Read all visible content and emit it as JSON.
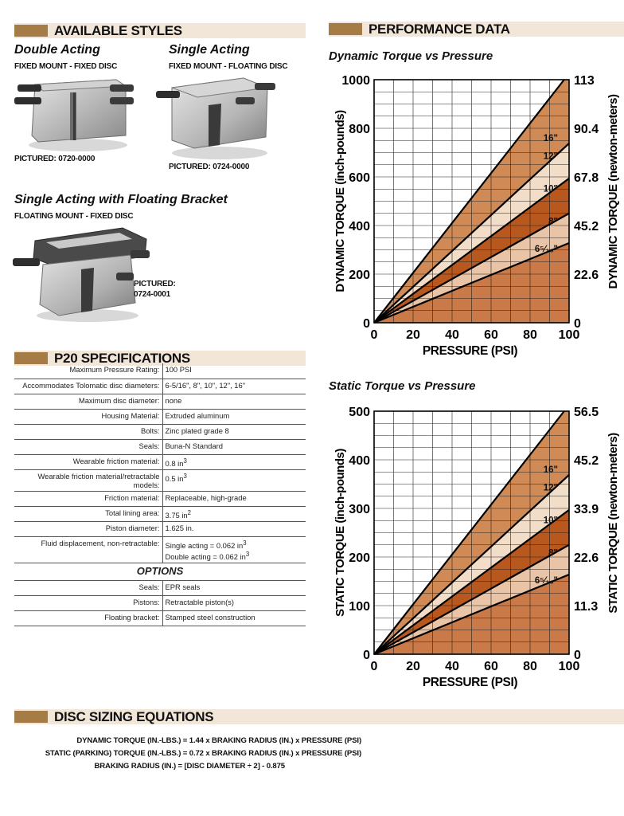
{
  "sections": {
    "available_styles": "AVAILABLE STYLES",
    "performance_data": "PERFORMANCE DATA",
    "specifications": "P20 SPECIFICATIONS",
    "disc_sizing": "DISC SIZING EQUATIONS"
  },
  "styles": [
    {
      "title": "Double Acting",
      "subtitle": "FIXED MOUNT - FIXED DISC",
      "pictured": "PICTURED:  0720-0000"
    },
    {
      "title": "Single Acting",
      "subtitle": "FIXED MOUNT - FLOATING DISC",
      "pictured": "PICTURED: 0724-0000"
    },
    {
      "title": "Single Acting with Floating Bracket",
      "subtitle": "FLOATING MOUNT - FIXED DISC",
      "pictured_line1": "PICTURED:",
      "pictured_line2": "0724-0001"
    }
  ],
  "specs": [
    {
      "label": "Maximum Pressure Rating:",
      "value": "100 PSI"
    },
    {
      "label": "Accommodates Tolomatic disc diameters:",
      "value": "6-5/16\",  8\",  10\", 12\", 16\""
    },
    {
      "label": "Maximum disc diameter:",
      "value": "none"
    },
    {
      "label": "Housing Material:",
      "value": "Extruded aluminum"
    },
    {
      "label": "Bolts:",
      "value": "Zinc plated grade 8"
    },
    {
      "label": "Seals:",
      "value": "Buna-N Standard"
    },
    {
      "label": "Wearable friction material:",
      "value": "0.8 in",
      "sup": "3"
    },
    {
      "label": "Wearable friction material/retractable models:",
      "value": "0.5 in",
      "sup": "3"
    },
    {
      "label": "Friction material:",
      "value": "Replaceable, high-grade"
    },
    {
      "label": "Total lining area:",
      "value": "3.75 in",
      "sup": "2"
    },
    {
      "label": "Piston diameter:",
      "value": "1.625 in."
    }
  ],
  "fluid": {
    "label": "Fluid displacement, non-retractable:",
    "line1": "Single acting = 0.062 in",
    "line2": "Double acting = 0.062 in",
    "sup": "3"
  },
  "options_title": "OPTIONS",
  "options": [
    {
      "label": "Seals:",
      "value": "EPR seals"
    },
    {
      "label": "Pistons:",
      "value": "Retractable piston(s)"
    },
    {
      "label": "Floating bracket:",
      "value": "Stamped steel construction"
    }
  ],
  "equations": [
    "DYNAMIC TORQUE (IN.-LBS.) = 1.44 x BRAKING RADIUS (IN.) x PRESSURE (PSI)",
    "STATIC (PARKING) TORQUE (IN.-LBS.) = 0.72 x BRAKING RADIUS (IN.) x PRESSURE (PSI)",
    "BRAKING RADIUS (IN.) = [DISC DIAMETER ÷ 2] - 0.875"
  ],
  "colors": {
    "band": "#f2e6d8",
    "swatch": "#a67c46",
    "fill_16": "#cf8a56",
    "fill_12": "#f2ddc9",
    "fill_10": "#b8581e",
    "fill_8": "#e9c4a6",
    "fill_6": "#c97a48"
  },
  "chart_data": [
    {
      "type": "line",
      "title": "Dynamic Torque vs Pressure",
      "xlabel": "PRESSURE (PSI)",
      "ylabel": "DYNAMIC TORQUE (inch-pounds)",
      "y2label": "DYNAMIC TORQUE (newton-meters)",
      "xlim": [
        0,
        100
      ],
      "ylim": [
        0,
        1000
      ],
      "x_ticks": [
        "0",
        "20",
        "40",
        "60",
        "80",
        "100"
      ],
      "y_ticks": [
        "0",
        "200",
        "400",
        "600",
        "800",
        "1000"
      ],
      "y2_ticks": [
        "0",
        "22.6",
        "45.2",
        "67.8",
        "90.4",
        "113"
      ],
      "grid": true,
      "series": [
        {
          "name": "16\"",
          "x": [
            0,
            100
          ],
          "y": [
            0,
            1026
          ]
        },
        {
          "name": "12\"",
          "x": [
            0,
            100
          ],
          "y": [
            0,
            738
          ]
        },
        {
          "name": "10\"",
          "x": [
            0,
            100
          ],
          "y": [
            0,
            594
          ]
        },
        {
          "name": "8\"",
          "x": [
            0,
            100
          ],
          "y": [
            0,
            450
          ]
        },
        {
          "name": "6⁵⁄₁₆\"",
          "x": [
            0,
            100
          ],
          "y": [
            0,
            328
          ]
        }
      ]
    },
    {
      "type": "line",
      "title": "Static Torque vs Pressure",
      "xlabel": "PRESSURE (PSI)",
      "ylabel": "STATIC TORQUE (inch-pounds)",
      "y2label": "STATIC TORQUE (newton-meters)",
      "xlim": [
        0,
        100
      ],
      "ylim": [
        0,
        500
      ],
      "x_ticks": [
        "0",
        "20",
        "40",
        "60",
        "80",
        "100"
      ],
      "y_ticks": [
        "0",
        "100",
        "200",
        "300",
        "400",
        "500"
      ],
      "y2_ticks": [
        "0",
        "11.3",
        "22.6",
        "33.9",
        "45.2",
        "56.5"
      ],
      "grid": true,
      "series": [
        {
          "name": "16\"",
          "x": [
            0,
            100
          ],
          "y": [
            0,
            513
          ]
        },
        {
          "name": "12\"",
          "x": [
            0,
            100
          ],
          "y": [
            0,
            369
          ]
        },
        {
          "name": "10\"",
          "x": [
            0,
            100
          ],
          "y": [
            0,
            297
          ]
        },
        {
          "name": "8\"",
          "x": [
            0,
            100
          ],
          "y": [
            0,
            225
          ]
        },
        {
          "name": "6⁵⁄₁₆\"",
          "x": [
            0,
            100
          ],
          "y": [
            0,
            164
          ]
        }
      ]
    }
  ]
}
